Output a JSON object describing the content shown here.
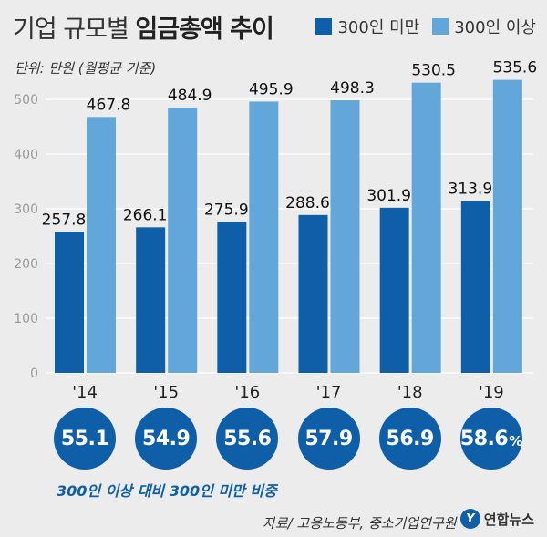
{
  "title": {
    "normal": "기업 규모별",
    "bold": "임금총액 추이"
  },
  "unit_note": "단위: 만원 (월평균 기준)",
  "colors": {
    "dark": "#0f5ea8",
    "light": "#63a6da",
    "grid": "#ffffff",
    "axis_text": "#9a9a9a"
  },
  "chart_data": {
    "type": "bar",
    "categories": [
      "'14",
      "'15",
      "'16",
      "'17",
      "'18",
      "'19"
    ],
    "series": [
      {
        "name": "300인 미만",
        "color": "#0f5ea8",
        "values": [
          257.8,
          266.1,
          275.9,
          288.6,
          301.9,
          313.9
        ]
      },
      {
        "name": "300인 이상",
        "color": "#63a6da",
        "values": [
          467.8,
          484.9,
          495.9,
          498.3,
          530.5,
          535.6
        ]
      }
    ],
    "value_labels": {
      "300인 미만": [
        "257.8",
        "266.1",
        "275.9",
        "288.6",
        "301.9",
        "313.9"
      ],
      "300인 이상": [
        "467.8",
        "484.9",
        "495.9",
        "498.3",
        "530.5",
        "535.6"
      ]
    },
    "yticks": [
      0,
      100,
      200,
      300,
      400,
      500
    ],
    "ytick_labels": [
      "0",
      "100",
      "200",
      "300",
      "400",
      "500"
    ],
    "ylim": [
      0,
      550
    ],
    "grid": true,
    "legend_position": "top-right"
  },
  "ratios": {
    "values": [
      "55.1",
      "54.9",
      "55.6",
      "57.9",
      "56.9",
      "58.6"
    ],
    "percent_sign": "%",
    "note": "300인 이상 대비 300인 미만 비중"
  },
  "source": "자료/ 고용노동부, 중소기업연구원",
  "brand": {
    "logo_letter": "Y",
    "name": "연합뉴스"
  }
}
